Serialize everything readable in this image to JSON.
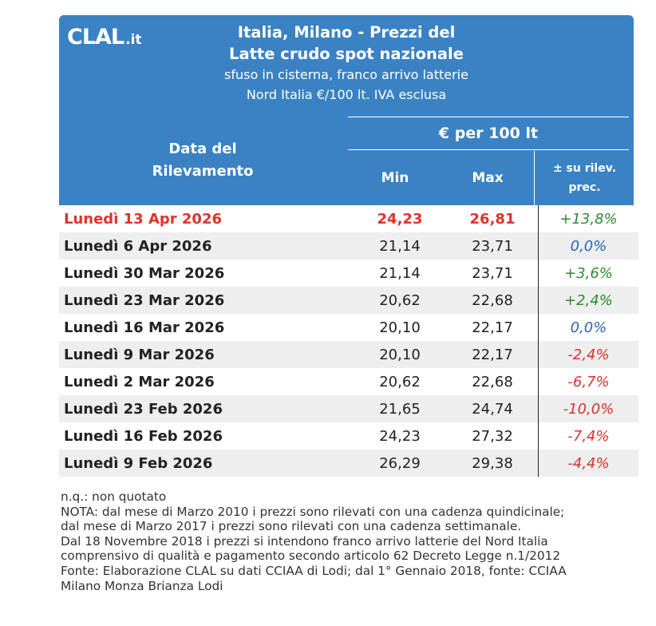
{
  "header": {
    "logo_main": "CLAL",
    "logo_tld": ".it",
    "title_line1": "Italia, Milano - Prezzi del",
    "title_line2": "Latte crudo spot nazionale",
    "subtitle_line1": "sfuso in cisterna, franco arrivo latterie",
    "subtitle_line2": "Nord Italia €/100 lt. IVA esclusa"
  },
  "columns": {
    "date_line1": "Data del",
    "date_line2": "Rilevamento",
    "group": "€ per 100 lt",
    "min": "Min",
    "max": "Max",
    "var_line1": "± su rilev.",
    "var_line2": "prec."
  },
  "rows": [
    {
      "date": "Lunedì 13 Apr 2026",
      "min": "24,23",
      "max": "26,81",
      "var": "+13,8%"
    },
    {
      "date": "Lunedì 6 Apr 2026",
      "min": "21,14",
      "max": "23,71",
      "var": "0,0%"
    },
    {
      "date": "Lunedì 30 Mar 2026",
      "min": "21,14",
      "max": "23,71",
      "var": "+3,6%"
    },
    {
      "date": "Lunedì 23 Mar 2026",
      "min": "20,62",
      "max": "22,68",
      "var": "+2,4%"
    },
    {
      "date": "Lunedì 16 Mar 2026",
      "min": "20,10",
      "max": "22,17",
      "var": "0,0%"
    },
    {
      "date": "Lunedì 9 Mar 2026",
      "min": "20,10",
      "max": "22,17",
      "var": "-2,4%"
    },
    {
      "date": "Lunedì 2 Mar 2026",
      "min": "20,62",
      "max": "22,68",
      "var": "-6,7%"
    },
    {
      "date": "Lunedì 23 Feb 2026",
      "min": "21,65",
      "max": "24,74",
      "var": "-10,0%"
    },
    {
      "date": "Lunedì 16 Feb 2026",
      "min": "24,23",
      "max": "27,32",
      "var": "-7,4%"
    },
    {
      "date": "Lunedì 9 Feb 2026",
      "min": "26,29",
      "max": "29,38",
      "var": "-4,4%"
    }
  ],
  "colors": {
    "header_bg": "#3a82c4",
    "current_row": "#e0322a",
    "positive": "#2e8b2e",
    "zero": "#2a66b3",
    "negative": "#d9322a"
  },
  "notes": [
    "n.q.: non quotato",
    "NOTA: dal mese di Marzo 2010 i prezzi sono rilevati con una cadenza quindicinale;",
    "dal mese di Marzo 2017 i prezzi sono rilevati con una cadenza settimanale.",
    "Dal 18 Novembre 2018 i prezzi si intendono franco arrivo latterie del Nord Italia",
    "comprensivo di qualità e pagamento secondo articolo 62 Decreto Legge n.1/2012",
    "Fonte: Elaborazione CLAL su dati CCIAA di Lodi; dal 1° Gennaio 2018, fonte: CCIAA",
    "Milano Monza Brianza Lodi"
  ]
}
